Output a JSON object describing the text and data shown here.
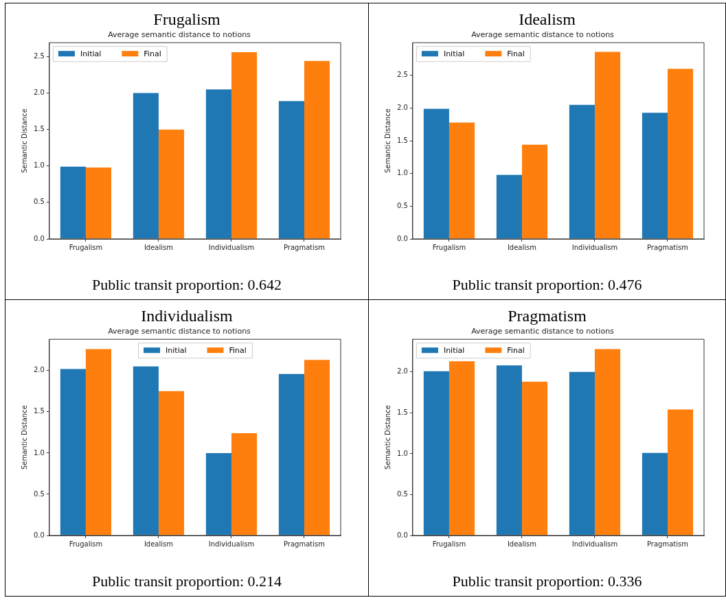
{
  "chart_data": [
    {
      "type": "bar",
      "title": "Frugalism",
      "subtitle": "Average semantic distance to notions",
      "ylabel": "Semantic Distance",
      "categories": [
        "Frugalism",
        "Idealism",
        "Individualism",
        "Pragmatism"
      ],
      "series": [
        {
          "name": "Initial",
          "color": "#1f77b4",
          "values": [
            0.99,
            2.0,
            2.05,
            1.89
          ]
        },
        {
          "name": "Final",
          "color": "#ff7f0e",
          "values": [
            0.98,
            1.5,
            2.56,
            2.44
          ]
        }
      ],
      "ylim": [
        0,
        2.69
      ],
      "yticks": [
        {
          "value": 0,
          "label": "0.0"
        },
        {
          "value": 0.5,
          "label": "0.5"
        },
        {
          "value": 1,
          "label": "1.0"
        },
        {
          "value": 1.5,
          "label": "1.5"
        },
        {
          "value": 2,
          "label": "2.0"
        },
        {
          "value": 2.5,
          "label": "2.5"
        }
      ],
      "grid": false,
      "legend": "top left",
      "annotations": [
        "Public transit proportion: 0.642"
      ]
    },
    {
      "type": "bar",
      "title": "Idealism",
      "subtitle": "Average semantic distance to notions",
      "ylabel": "Semantic Distance",
      "categories": [
        "Frugalism",
        "Idealism",
        "Individualism",
        "Pragmatism"
      ],
      "series": [
        {
          "name": "Initial",
          "color": "#1f77b4",
          "values": [
            1.99,
            0.98,
            2.05,
            1.93
          ]
        },
        {
          "name": "Final",
          "color": "#ff7f0e",
          "values": [
            1.78,
            1.44,
            2.86,
            2.6
          ]
        }
      ],
      "ylim": [
        0,
        3.0
      ],
      "yticks": [
        {
          "value": 0,
          "label": "0.0"
        },
        {
          "value": 0.5,
          "label": "0.5"
        },
        {
          "value": 1,
          "label": "1.0"
        },
        {
          "value": 1.5,
          "label": "1.5"
        },
        {
          "value": 2,
          "label": "2.0"
        },
        {
          "value": 2.5,
          "label": "2.5"
        }
      ],
      "grid": false,
      "legend": "top left",
      "annotations": [
        "Public transit proportion: 0.476"
      ]
    },
    {
      "type": "bar",
      "title": "Individualism",
      "subtitle": "Average semantic distance to notions",
      "ylabel": "Semantic Distance",
      "categories": [
        "Frugalism",
        "Idealism",
        "Individualism",
        "Pragmatism"
      ],
      "series": [
        {
          "name": "Initial",
          "color": "#1f77b4",
          "values": [
            2.02,
            2.05,
            1.0,
            1.96
          ]
        },
        {
          "name": "Final",
          "color": "#ff7f0e",
          "values": [
            2.26,
            1.75,
            1.24,
            2.13
          ]
        }
      ],
      "ylim": [
        0,
        2.38
      ],
      "yticks": [
        {
          "value": 0,
          "label": "0.0"
        },
        {
          "value": 0.5,
          "label": "0.5"
        },
        {
          "value": 1,
          "label": "1.0"
        },
        {
          "value": 1.5,
          "label": "1.5"
        },
        {
          "value": 2,
          "label": "2.0"
        }
      ],
      "grid": false,
      "legend": "top",
      "annotations": [
        "Public transit proportion: 0.214"
      ]
    },
    {
      "type": "bar",
      "title": "Pragmatism",
      "subtitle": "Average semantic distance to notions",
      "ylabel": "Semantic Distance",
      "categories": [
        "Frugalism",
        "Idealism",
        "Individualism",
        "Pragmatism"
      ],
      "series": [
        {
          "name": "Initial",
          "color": "#1f77b4",
          "values": [
            2.01,
            2.08,
            2.0,
            1.01
          ]
        },
        {
          "name": "Final",
          "color": "#ff7f0e",
          "values": [
            2.13,
            1.88,
            2.28,
            1.54
          ]
        }
      ],
      "ylim": [
        0,
        2.4
      ],
      "yticks": [
        {
          "value": 0,
          "label": "0.0"
        },
        {
          "value": 0.5,
          "label": "0.5"
        },
        {
          "value": 1,
          "label": "1.0"
        },
        {
          "value": 1.5,
          "label": "1.5"
        },
        {
          "value": 2,
          "label": "2.0"
        }
      ],
      "grid": false,
      "legend": "top left",
      "annotations": [
        "Public transit proportion: 0.336"
      ]
    }
  ]
}
